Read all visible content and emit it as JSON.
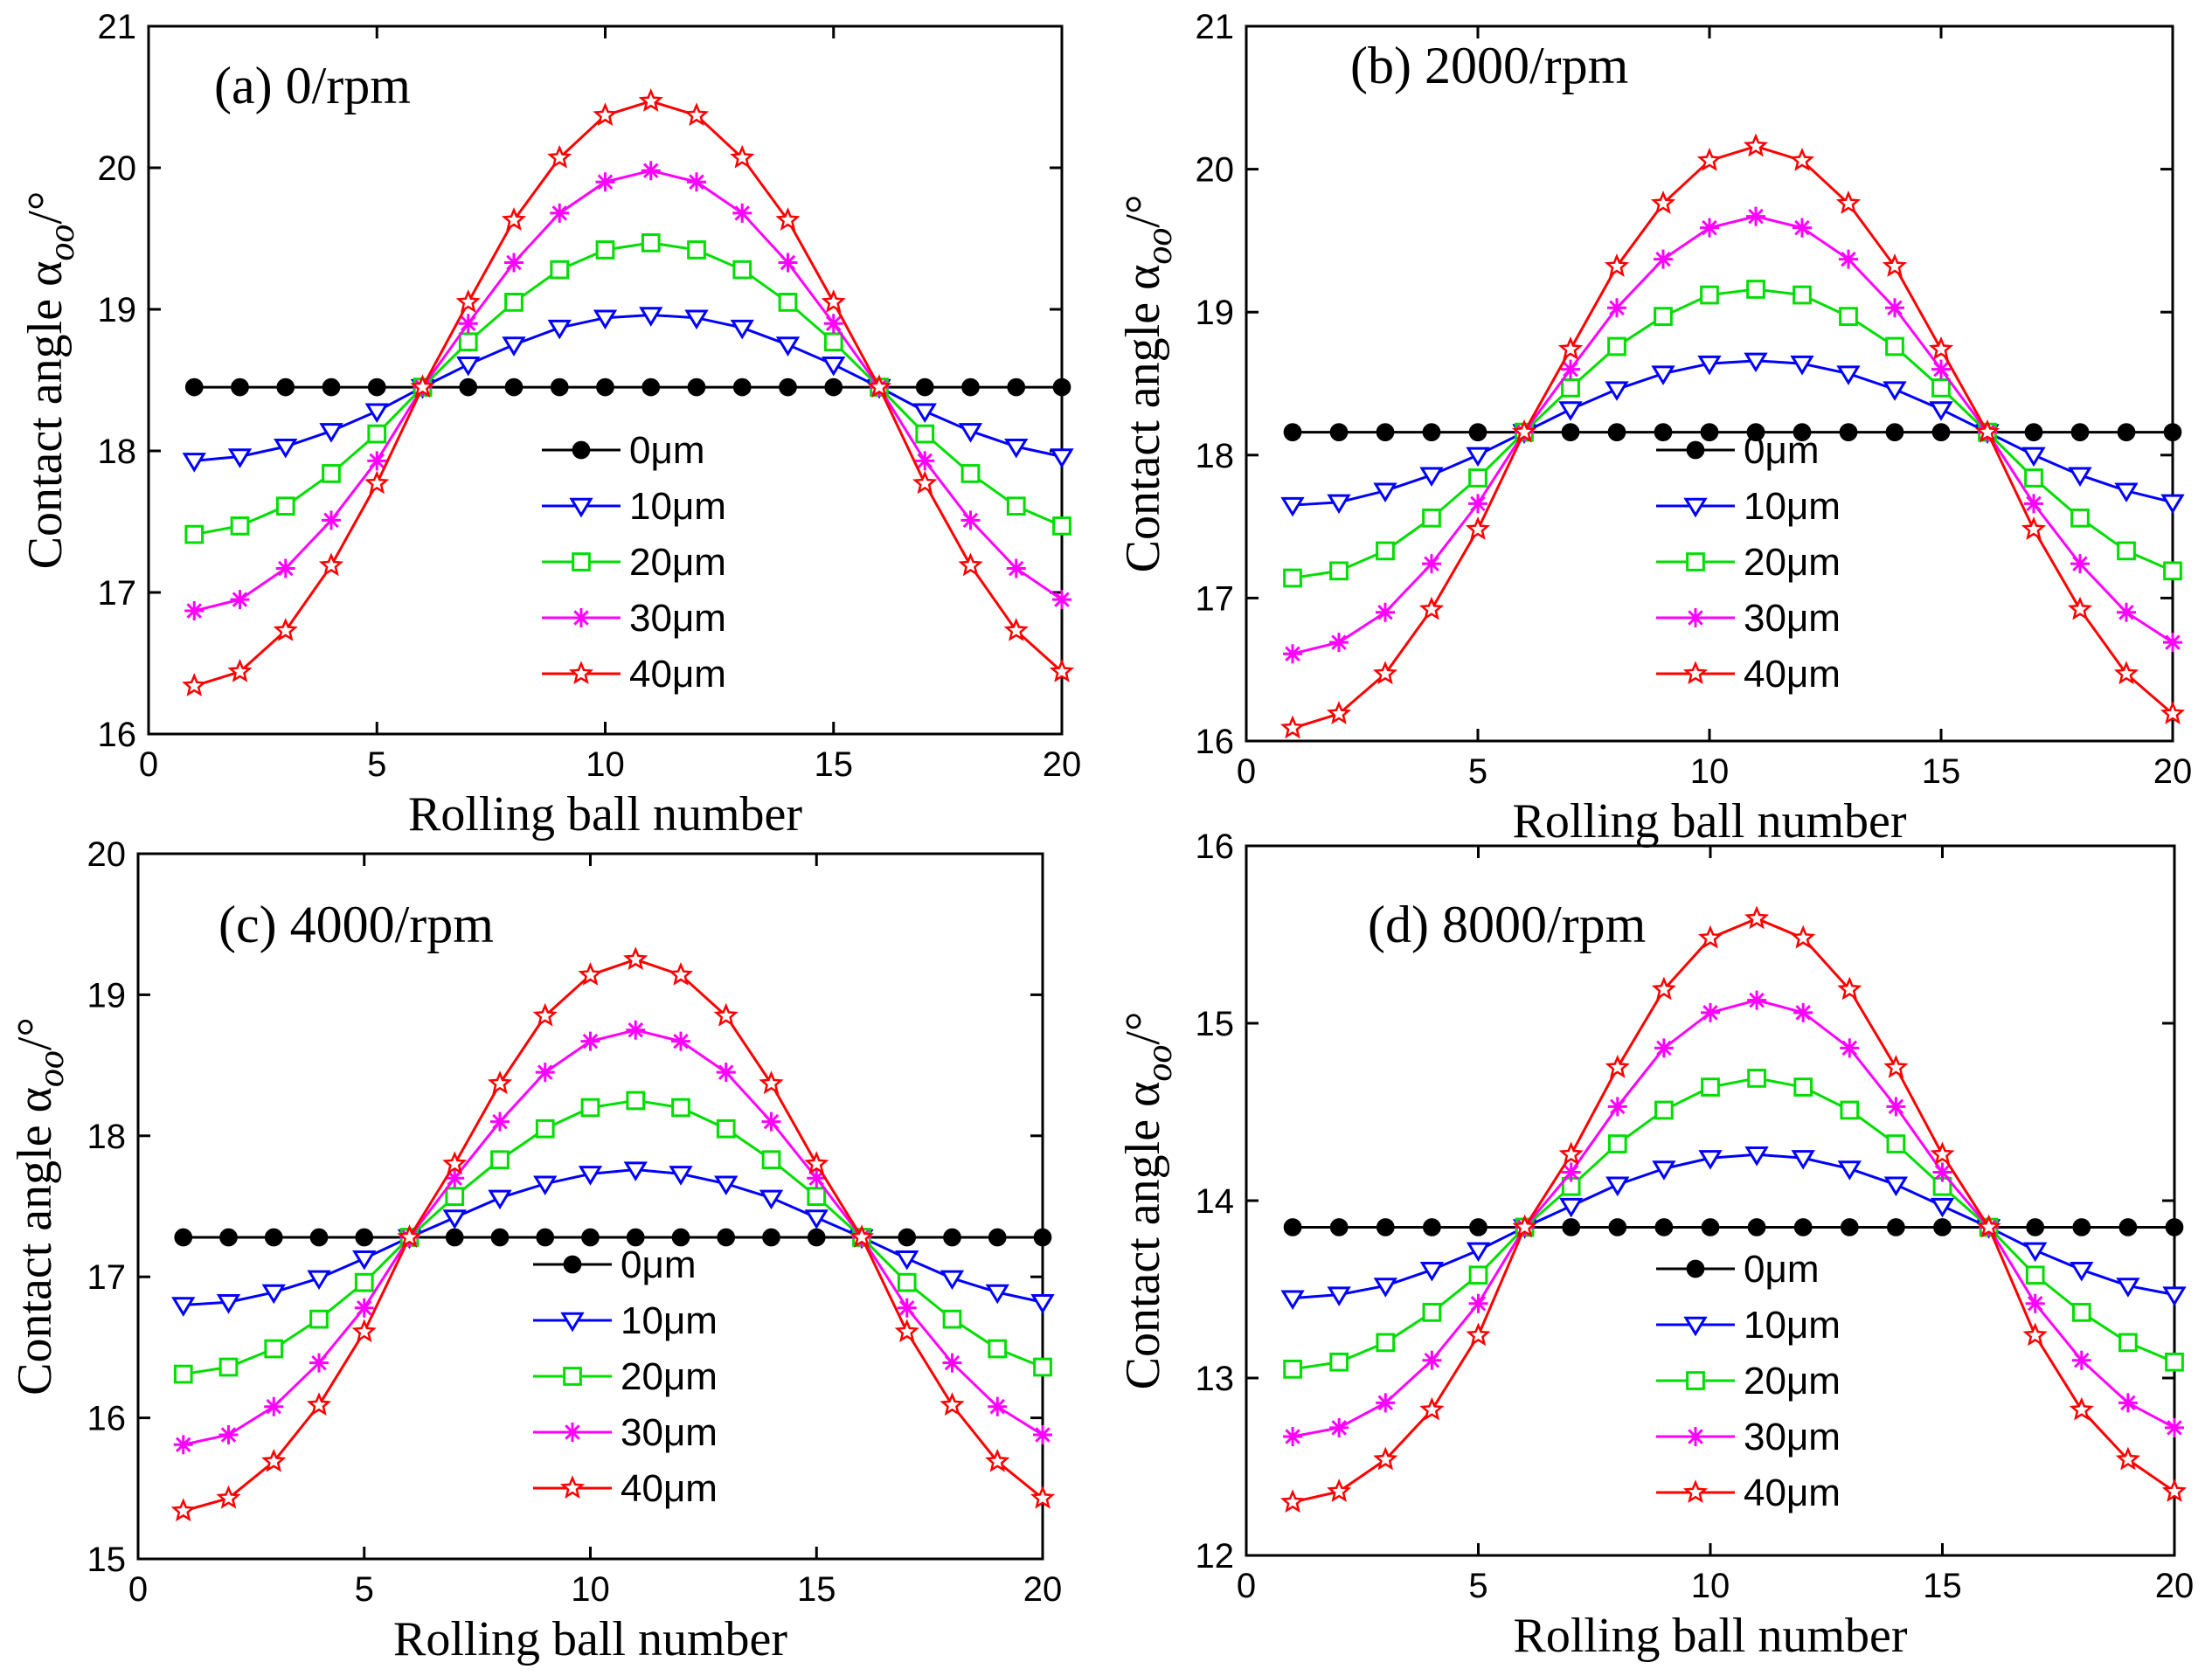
{
  "figure": {
    "xlabel": "Rolling ball number",
    "ylabel_prefix": "Contact angle α",
    "ylabel_sub": "oo",
    "ylabel_suffix": "/°"
  },
  "series_styles": [
    {
      "name": "0μm",
      "color": "#000000",
      "marker": "circle"
    },
    {
      "name": "10μm",
      "color": "#0000ff",
      "marker": "triangle-down"
    },
    {
      "name": "20μm",
      "color": "#00dd00",
      "marker": "square"
    },
    {
      "name": "30μm",
      "color": "#ff00ff",
      "marker": "asterisk"
    },
    {
      "name": "40μm",
      "color": "#ff0000",
      "marker": "star"
    }
  ],
  "chart_data": [
    {
      "type": "line",
      "title": "(a) 0/rpm",
      "xlabel": "Rolling ball number",
      "ylabel": "Contact angle αoo/°",
      "xlim": [
        0,
        20
      ],
      "ylim": [
        16,
        21
      ],
      "xticks": [
        0,
        5,
        10,
        15,
        20
      ],
      "yticks": [
        16,
        17,
        18,
        19,
        20,
        21
      ],
      "x": [
        1,
        2,
        3,
        4,
        5,
        6,
        7,
        8,
        9,
        10,
        11,
        12,
        13,
        14,
        15,
        16,
        17,
        18,
        19,
        20
      ],
      "legend_loc": "lower-center",
      "series": [
        {
          "name": "0μm",
          "values": [
            18.45,
            18.45,
            18.45,
            18.45,
            18.45,
            18.45,
            18.45,
            18.45,
            18.45,
            18.45,
            18.45,
            18.45,
            18.45,
            18.45,
            18.45,
            18.45,
            18.45,
            18.45,
            18.45,
            18.45
          ]
        },
        {
          "name": "10μm",
          "values": [
            17.93,
            17.96,
            18.03,
            18.14,
            18.28,
            18.45,
            18.61,
            18.75,
            18.87,
            18.94,
            18.96,
            18.94,
            18.87,
            18.75,
            18.61,
            18.45,
            18.28,
            18.14,
            18.03,
            17.96
          ]
        },
        {
          "name": "20μm",
          "values": [
            17.41,
            17.47,
            17.61,
            17.84,
            18.12,
            18.45,
            18.77,
            19.05,
            19.28,
            19.42,
            19.47,
            19.42,
            19.28,
            19.05,
            18.77,
            18.45,
            18.12,
            17.84,
            17.61,
            17.47
          ]
        },
        {
          "name": "30μm",
          "values": [
            16.87,
            16.95,
            17.17,
            17.51,
            17.93,
            18.45,
            18.9,
            19.33,
            19.68,
            19.9,
            19.98,
            19.9,
            19.68,
            19.33,
            18.9,
            18.45,
            17.93,
            17.51,
            17.17,
            16.95
          ]
        },
        {
          "name": "40μm",
          "values": [
            16.34,
            16.44,
            16.73,
            17.19,
            17.77,
            18.45,
            19.05,
            19.63,
            20.07,
            20.37,
            20.47,
            20.37,
            20.07,
            19.63,
            19.05,
            18.45,
            17.77,
            17.19,
            16.73,
            16.44
          ]
        }
      ]
    },
    {
      "type": "line",
      "title": "(b) 2000/rpm",
      "xlabel": "Rolling ball number",
      "ylabel": "Contact angle αoo/°",
      "xlim": [
        0,
        20
      ],
      "ylim": [
        16,
        21
      ],
      "xticks": [
        0,
        5,
        10,
        15,
        20
      ],
      "yticks": [
        16,
        17,
        18,
        19,
        20,
        21
      ],
      "x": [
        1,
        2,
        3,
        4,
        5,
        6,
        7,
        8,
        9,
        10,
        11,
        12,
        13,
        14,
        15,
        16,
        17,
        18,
        19,
        20
      ],
      "legend_loc": "lower-center",
      "series": [
        {
          "name": "0μm",
          "values": [
            18.16,
            18.16,
            18.16,
            18.16,
            18.16,
            18.16,
            18.16,
            18.16,
            18.16,
            18.16,
            18.16,
            18.16,
            18.16,
            18.16,
            18.16,
            18.16,
            18.16,
            18.16,
            18.16,
            18.16
          ]
        },
        {
          "name": "10μm",
          "values": [
            17.65,
            17.67,
            17.75,
            17.86,
            18.0,
            18.16,
            18.32,
            18.46,
            18.57,
            18.64,
            18.66,
            18.64,
            18.57,
            18.46,
            18.32,
            18.16,
            18.0,
            17.86,
            17.75,
            17.67
          ]
        },
        {
          "name": "20μm",
          "values": [
            17.14,
            17.19,
            17.33,
            17.56,
            17.84,
            18.16,
            18.47,
            18.76,
            18.97,
            19.12,
            19.16,
            19.12,
            18.97,
            18.76,
            18.47,
            18.16,
            17.84,
            17.56,
            17.33,
            17.19
          ]
        },
        {
          "name": "30μm",
          "values": [
            16.61,
            16.69,
            16.9,
            17.24,
            17.66,
            18.16,
            18.6,
            19.03,
            19.37,
            19.59,
            19.67,
            19.59,
            19.37,
            19.03,
            18.6,
            18.16,
            17.66,
            17.24,
            16.9,
            16.69
          ]
        },
        {
          "name": "40μm",
          "values": [
            16.09,
            16.19,
            16.47,
            16.92,
            17.48,
            18.16,
            18.74,
            19.32,
            19.76,
            20.06,
            20.16,
            20.06,
            19.76,
            19.32,
            18.74,
            18.16,
            17.48,
            16.92,
            16.47,
            16.19
          ]
        }
      ]
    },
    {
      "type": "line",
      "title": "(c) 4000/rpm",
      "xlabel": "Rolling ball number",
      "ylabel": "Contact angle αoo/°",
      "xlim": [
        0,
        20
      ],
      "ylim": [
        15,
        20
      ],
      "xticks": [
        0,
        5,
        10,
        15,
        20
      ],
      "yticks": [
        15,
        16,
        17,
        18,
        19,
        20
      ],
      "x": [
        1,
        2,
        3,
        4,
        5,
        6,
        7,
        8,
        9,
        10,
        11,
        12,
        13,
        14,
        15,
        16,
        17,
        18,
        19,
        20
      ],
      "legend_loc": "lower-center",
      "series": [
        {
          "name": "0μm",
          "values": [
            17.28,
            17.28,
            17.28,
            17.28,
            17.28,
            17.28,
            17.28,
            17.28,
            17.28,
            17.28,
            17.28,
            17.28,
            17.28,
            17.28,
            17.28,
            17.28,
            17.28,
            17.28,
            17.28,
            17.28
          ]
        },
        {
          "name": "10μm",
          "values": [
            16.8,
            16.82,
            16.89,
            16.99,
            17.13,
            17.28,
            17.42,
            17.56,
            17.66,
            17.73,
            17.76,
            17.73,
            17.66,
            17.56,
            17.42,
            17.28,
            17.13,
            16.99,
            16.89,
            16.82
          ]
        },
        {
          "name": "20μm",
          "values": [
            16.31,
            16.36,
            16.49,
            16.7,
            16.96,
            17.28,
            17.57,
            17.83,
            18.05,
            18.2,
            18.25,
            18.2,
            18.05,
            17.83,
            17.57,
            17.28,
            16.96,
            16.7,
            16.49,
            16.36
          ]
        },
        {
          "name": "30μm",
          "values": [
            15.81,
            15.88,
            16.08,
            16.39,
            16.78,
            17.28,
            17.7,
            18.1,
            18.45,
            18.67,
            18.75,
            18.67,
            18.45,
            18.1,
            17.7,
            17.28,
            16.78,
            16.39,
            16.08,
            15.88
          ]
        },
        {
          "name": "40μm",
          "values": [
            15.34,
            15.43,
            15.69,
            16.09,
            16.61,
            17.28,
            17.8,
            18.37,
            18.85,
            19.14,
            19.25,
            19.14,
            18.85,
            18.37,
            17.8,
            17.28,
            16.61,
            16.09,
            15.69,
            15.43
          ]
        }
      ]
    },
    {
      "type": "line",
      "title": "(d) 8000/rpm",
      "xlabel": "Rolling ball number",
      "ylabel": "Contact angle αoo/°",
      "xlim": [
        0,
        20
      ],
      "ylim": [
        12,
        16
      ],
      "xticks": [
        0,
        5,
        10,
        15,
        20
      ],
      "yticks": [
        12,
        13,
        14,
        15,
        16
      ],
      "x": [
        1,
        2,
        3,
        4,
        5,
        6,
        7,
        8,
        9,
        10,
        11,
        12,
        13,
        14,
        15,
        16,
        17,
        18,
        19,
        20
      ],
      "legend_loc": "lower-center",
      "series": [
        {
          "name": "0μm",
          "values": [
            13.85,
            13.85,
            13.85,
            13.85,
            13.85,
            13.85,
            13.85,
            13.85,
            13.85,
            13.85,
            13.85,
            13.85,
            13.85,
            13.85,
            13.85,
            13.85,
            13.85,
            13.85,
            13.85,
            13.85
          ]
        },
        {
          "name": "10μm",
          "values": [
            13.45,
            13.47,
            13.52,
            13.61,
            13.72,
            13.85,
            13.97,
            14.09,
            14.18,
            14.24,
            14.26,
            14.24,
            14.18,
            14.09,
            13.97,
            13.85,
            13.72,
            13.61,
            13.52,
            13.47
          ]
        },
        {
          "name": "20μm",
          "values": [
            13.05,
            13.09,
            13.2,
            13.37,
            13.58,
            13.85,
            14.08,
            14.32,
            14.51,
            14.64,
            14.69,
            14.64,
            14.51,
            14.32,
            14.08,
            13.85,
            13.58,
            13.37,
            13.2,
            13.09
          ]
        },
        {
          "name": "30μm",
          "values": [
            12.67,
            12.72,
            12.86,
            13.1,
            13.42,
            13.85,
            14.16,
            14.53,
            14.86,
            15.06,
            15.13,
            15.06,
            14.86,
            14.53,
            14.16,
            13.85,
            13.42,
            13.1,
            12.86,
            12.72
          ]
        },
        {
          "name": "40μm",
          "values": [
            12.3,
            12.36,
            12.54,
            12.82,
            13.24,
            13.85,
            14.26,
            14.75,
            15.19,
            15.48,
            15.59,
            15.48,
            15.19,
            14.75,
            14.26,
            13.85,
            13.24,
            12.82,
            12.54,
            12.36
          ]
        }
      ]
    }
  ]
}
